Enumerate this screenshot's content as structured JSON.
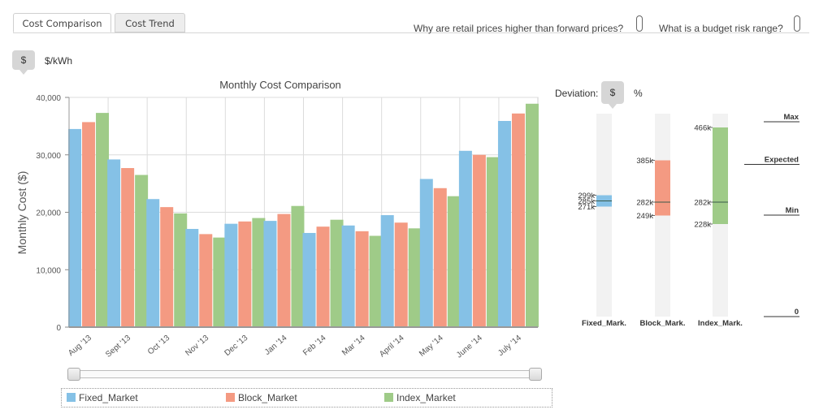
{
  "tabs": [
    {
      "label": "Cost Comparison",
      "active": true
    },
    {
      "label": "Cost Trend",
      "active": false
    }
  ],
  "help_links": [
    {
      "label": "Why are retail prices higher than forward prices?"
    },
    {
      "label": "What is a budget risk range?"
    }
  ],
  "unit_toggle": {
    "dollar": "$",
    "unit": "$/kWh"
  },
  "deviation": {
    "label": "Deviation:",
    "dollar": "$",
    "percent": "%"
  },
  "colors": {
    "fixed": "#85c1e6",
    "block": "#f49a82",
    "index": "#9fcb88",
    "track": "#f2f2f2",
    "grid": "#dcdcdc"
  },
  "chart_data": [
    {
      "type": "bar",
      "title": "Monthly Cost Comparison",
      "xlabel": "",
      "ylabel": "Monthly Cost ($)",
      "ylim": [
        0,
        40000
      ],
      "yticks": [
        "0",
        "10,000",
        "20,000",
        "30,000",
        "40,000"
      ],
      "ytick_values": [
        0,
        10000,
        20000,
        30000,
        40000
      ],
      "grid": true,
      "categories": [
        "Aug '13",
        "Sept '13",
        "Oct '13",
        "Nov '13",
        "Dec '13",
        "Jan '14",
        "Feb '14",
        "Mar '14",
        "April '14",
        "May '14",
        "June '14",
        "July '14"
      ],
      "series": [
        {
          "name": "Fixed_Market",
          "color": "#85c1e6",
          "values": [
            34500,
            29200,
            22300,
            17100,
            18000,
            18500,
            16400,
            17700,
            19500,
            25800,
            30700,
            35900
          ]
        },
        {
          "name": "Block_Market",
          "color": "#f49a82",
          "values": [
            35700,
            27700,
            20900,
            16200,
            18400,
            19700,
            17500,
            16700,
            18200,
            24200,
            30000,
            37200
          ]
        },
        {
          "name": "Index_Market",
          "color": "#9fcb88",
          "values": [
            37300,
            26500,
            19800,
            15600,
            19000,
            21100,
            18700,
            15900,
            17200,
            22800,
            29600,
            38900
          ]
        }
      ],
      "legend": "bottom"
    },
    {
      "type": "range",
      "ylim": [
        0,
        500000
      ],
      "scale_labels": [
        "Max",
        "Expected",
        "Min",
        "0"
      ],
      "scale_levels": [
        0.96,
        0.75,
        0.5,
        0.0
      ],
      "columns": [
        {
          "name": "Fixed_Mark.",
          "color": "#85c1e6",
          "min": 271000,
          "expected": 285000,
          "max": 299000,
          "min_label": "271k",
          "expected_label": "285k",
          "max_label": "299k"
        },
        {
          "name": "Block_Mark.",
          "color": "#f49a82",
          "min": 249000,
          "expected": 282000,
          "max": 385000,
          "min_label": "249k",
          "expected_label": "282k",
          "max_label": "385k"
        },
        {
          "name": "Index_Mark.",
          "color": "#9fcb88",
          "min": 228000,
          "expected": 282000,
          "max": 466000,
          "min_label": "228k",
          "expected_label": "282k",
          "max_label": "466k"
        }
      ]
    }
  ]
}
